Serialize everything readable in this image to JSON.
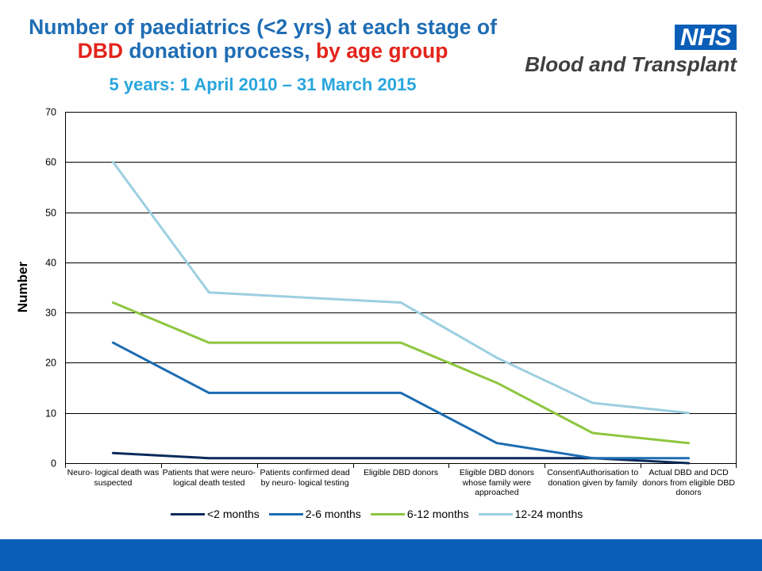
{
  "colors": {
    "title_blue": "#1f6db4",
    "title_red": "#e3241b",
    "subtitle_blue": "#29a6dd",
    "nhs_blue": "#0b5eb7",
    "logo_text": "#3f3f3f"
  },
  "logo": {
    "badge": "NHS",
    "org_name": "Blood and Transplant"
  },
  "chart_data": {
    "type": "line",
    "title": {
      "line1": "Number of paediatrics (<2 yrs) at each stage of",
      "line2": [
        "DBD",
        "donation process,",
        "by age group"
      ]
    },
    "subtitle": "5 years: 1 April 2010 – 31 March 2015",
    "ylabel": "Number",
    "ylim": [
      0,
      70
    ],
    "yticks": [
      0,
      10,
      20,
      30,
      40,
      50,
      60,
      70
    ],
    "grid": true,
    "legend": "bottom",
    "categories": [
      "Neuro- logical death was suspected",
      "Patients that were neuro- logical death tested",
      "Patients confirmed dead by neuro- logical testing",
      "Eligible DBD donors",
      "Eligible DBD donors whose family were approached",
      "Consent\\Authorisation to donation given by family",
      "Actual DBD and DCD donors from eligible DBD donors"
    ],
    "series": [
      {
        "name": "<2 months",
        "color": "#0c2a5b",
        "values": [
          2,
          1,
          1,
          1,
          1,
          1,
          0
        ]
      },
      {
        "name": "2-6 months",
        "color": "#1c6cb2",
        "values": [
          24,
          14,
          14,
          14,
          4,
          1,
          1
        ]
      },
      {
        "name": "6-12 months",
        "color": "#8dc63f",
        "values": [
          32,
          24,
          24,
          24,
          16,
          6,
          4
        ]
      },
      {
        "name": "12-24 months",
        "color": "#9ccfe1",
        "values": [
          60,
          34,
          33,
          32,
          21,
          12,
          10
        ]
      }
    ]
  }
}
